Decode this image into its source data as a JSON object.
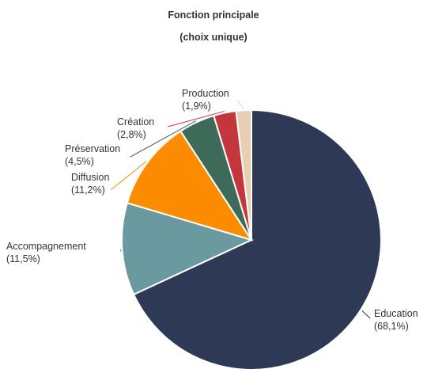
{
  "chart_data": {
    "type": "pie",
    "title": "Fonction principale",
    "subtitle": "(choix unique)",
    "slices": [
      {
        "label": "Education",
        "pct_label": "(68,1%)",
        "value": 68.1,
        "color": "#2e3a55"
      },
      {
        "label": "Accompagnement",
        "pct_label": "(11,5%)",
        "value": 11.5,
        "color": "#6a9aa0"
      },
      {
        "label": "Diffusion",
        "pct_label": "(11,2%)",
        "value": 11.2,
        "color": "#fb8c00"
      },
      {
        "label": "Préservation",
        "pct_label": "(4,5%)",
        "value": 4.5,
        "color": "#3e6b59"
      },
      {
        "label": "Création",
        "pct_label": "(2,8%)",
        "value": 2.8,
        "color": "#c4353c"
      },
      {
        "label": "Production",
        "pct_label": "(1,9%)",
        "value": 1.9,
        "color": "#e8cfb2"
      }
    ],
    "legend": "none"
  }
}
